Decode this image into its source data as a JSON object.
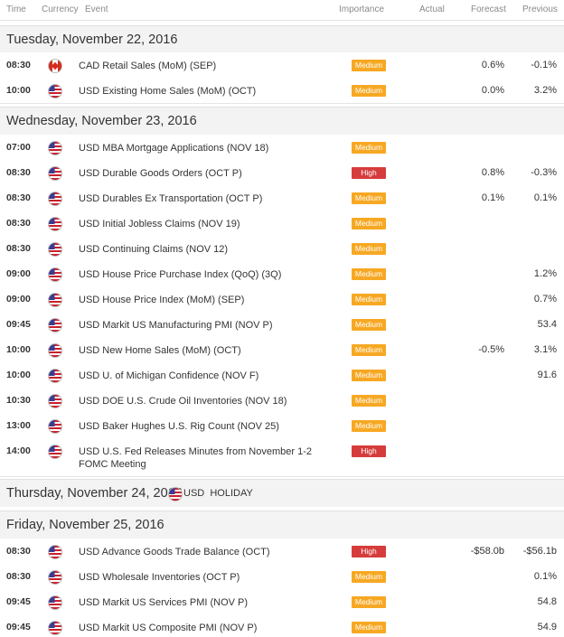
{
  "header": {
    "time": "Time",
    "currency": "Currency",
    "event": "Event",
    "importance": "Importance",
    "actual": "Actual",
    "forecast": "Forecast",
    "previous": "Previous"
  },
  "days": [
    {
      "label": "Tuesday, November 22, 2016"
    },
    {
      "label": "Wednesday, November 23, 2016"
    },
    {
      "label": "Thursday, November 24, 2016",
      "holiday_currency": "USD",
      "holiday_text": "HOLIDAY"
    },
    {
      "label": "Friday, November 25, 2016"
    }
  ],
  "rows": [
    {
      "time": "08:30",
      "flag": "ca",
      "event": "CAD Retail Sales (MoM) (SEP)",
      "importance": "Medium",
      "forecast": "0.6%",
      "previous": "-0.1%"
    },
    {
      "time": "10:00",
      "flag": "us",
      "event": "USD Existing Home Sales (MoM) (OCT)",
      "importance": "Medium",
      "forecast": "0.0%",
      "previous": "3.2%"
    },
    {
      "time": "07:00",
      "flag": "us",
      "event": "USD MBA Mortgage Applications (NOV 18)",
      "importance": "Medium",
      "forecast": "",
      "previous": ""
    },
    {
      "time": "08:30",
      "flag": "us",
      "event": "USD Durable Goods Orders (OCT P)",
      "importance": "High",
      "forecast": "0.8%",
      "previous": "-0.3%"
    },
    {
      "time": "08:30",
      "flag": "us",
      "event": "USD Durables Ex Transportation (OCT P)",
      "importance": "Medium",
      "forecast": "0.1%",
      "previous": "0.1%"
    },
    {
      "time": "08:30",
      "flag": "us",
      "event": "USD Initial Jobless Claims (NOV 19)",
      "importance": "Medium",
      "forecast": "",
      "previous": ""
    },
    {
      "time": "08:30",
      "flag": "us",
      "event": "USD Continuing Claims (NOV 12)",
      "importance": "Medium",
      "forecast": "",
      "previous": ""
    },
    {
      "time": "09:00",
      "flag": "us",
      "event": "USD House Price Purchase Index (QoQ) (3Q)",
      "importance": "Medium",
      "forecast": "",
      "previous": "1.2%"
    },
    {
      "time": "09:00",
      "flag": "us",
      "event": "USD House Price Index (MoM) (SEP)",
      "importance": "Medium",
      "forecast": "",
      "previous": "0.7%"
    },
    {
      "time": "09:45",
      "flag": "us",
      "event": "USD Markit US Manufacturing PMI (NOV P)",
      "importance": "Medium",
      "forecast": "",
      "previous": "53.4"
    },
    {
      "time": "10:00",
      "flag": "us",
      "event": "USD New Home Sales (MoM) (OCT)",
      "importance": "Medium",
      "forecast": "-0.5%",
      "previous": "3.1%"
    },
    {
      "time": "10:00",
      "flag": "us",
      "event": "USD U. of Michigan Confidence (NOV F)",
      "importance": "Medium",
      "forecast": "",
      "previous": "91.6"
    },
    {
      "time": "10:30",
      "flag": "us",
      "event": "USD DOE U.S. Crude Oil Inventories (NOV 18)",
      "importance": "Medium",
      "forecast": "",
      "previous": ""
    },
    {
      "time": "13:00",
      "flag": "us",
      "event": "USD Baker Hughes U.S. Rig Count (NOV 25)",
      "importance": "Medium",
      "forecast": "",
      "previous": ""
    },
    {
      "time": "14:00",
      "flag": "us",
      "event": "USD U.S. Fed Releases Minutes from November 1-2 FOMC Meeting",
      "importance": "High",
      "forecast": "",
      "previous": ""
    },
    {
      "time": "08:30",
      "flag": "us",
      "event": "USD Advance Goods Trade Balance (OCT)",
      "importance": "High",
      "forecast": "-$58.0b",
      "previous": "-$56.1b"
    },
    {
      "time": "08:30",
      "flag": "us",
      "event": "USD Wholesale Inventories (OCT P)",
      "importance": "Medium",
      "forecast": "",
      "previous": "0.1%"
    },
    {
      "time": "09:45",
      "flag": "us",
      "event": "USD Markit US Services PMI (NOV P)",
      "importance": "Medium",
      "forecast": "",
      "previous": "54.8"
    },
    {
      "time": "09:45",
      "flag": "us",
      "event": "USD Markit US Composite PMI (NOV P)",
      "importance": "Medium",
      "forecast": "",
      "previous": "54.9"
    }
  ]
}
